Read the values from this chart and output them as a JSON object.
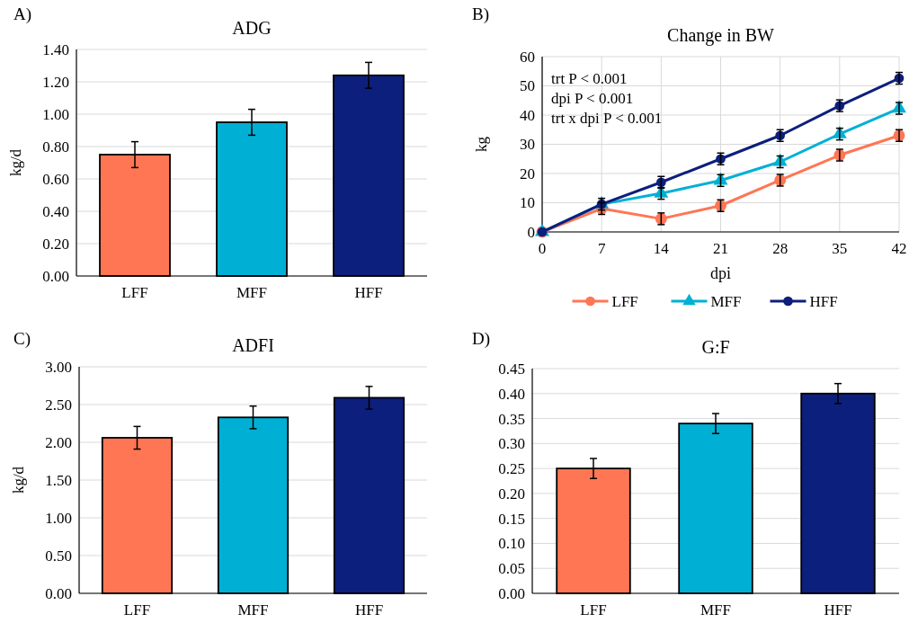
{
  "chart_data": [
    {
      "type": "bar",
      "title": "ADG",
      "ylabel": "kg/d",
      "annotations": [
        "A)"
      ],
      "categories": [
        "LFF",
        "MFF",
        "HFF"
      ],
      "values": [
        0.75,
        0.95,
        1.24
      ],
      "colors": [
        "#ff7654",
        "#00b0d4",
        "#0d1f7c"
      ],
      "errors": [
        0.08,
        0.08,
        0.08
      ],
      "ylim": [
        0,
        1.4
      ],
      "yticks": [
        {
          "value": 0,
          "label": "0.00"
        },
        {
          "value": 0.2,
          "label": "0.20"
        },
        {
          "value": 0.4,
          "label": "0.40"
        },
        {
          "value": 0.6,
          "label": "0.60"
        },
        {
          "value": 0.8,
          "label": "0.80"
        },
        {
          "value": 1,
          "label": "1.00"
        },
        {
          "value": 1.2,
          "label": "1.20"
        },
        {
          "value": 1.4,
          "label": "1.40"
        }
      ],
      "grid": "y"
    },
    {
      "type": "line",
      "title": "Change in BW",
      "xlabel": "dpi",
      "ylabel": "kg",
      "annotations": [
        "B)",
        "trt P < 0.001",
        "dpi P < 0.001",
        "trt x dpi P < 0.001"
      ],
      "x": [
        0,
        7,
        14,
        21,
        28,
        35,
        42
      ],
      "series": [
        {
          "name": "LFF",
          "color": "#ff7654",
          "marker": "circle",
          "values": [
            0,
            8,
            4.5,
            9,
            17.7,
            26.3,
            33
          ],
          "errors": [
            null,
            2,
            2,
            2,
            2,
            2,
            2
          ]
        },
        {
          "name": "MFF",
          "color": "#00b0d4",
          "marker": "triangle",
          "values": [
            0,
            9.5,
            13.2,
            17.6,
            24,
            33.5,
            42.3
          ],
          "errors": [
            null,
            null,
            2,
            2,
            2,
            2,
            2
          ]
        },
        {
          "name": "HFF",
          "color": "#0d1f7c",
          "marker": "circle",
          "values": [
            0,
            9.5,
            17,
            25,
            33,
            43.2,
            52.6
          ],
          "errors": [
            null,
            2,
            2,
            2,
            2,
            2,
            2
          ]
        }
      ],
      "xlim": [
        0,
        42
      ],
      "xticks": [
        0,
        7,
        14,
        21,
        28,
        35,
        42
      ],
      "ylim": [
        0,
        60
      ],
      "yticks": [
        0,
        10,
        20,
        30,
        40,
        50,
        60
      ],
      "grid": true,
      "legend": "bottom"
    },
    {
      "type": "bar",
      "title": "ADFI",
      "ylabel": "kg/d",
      "annotations": [
        "C)"
      ],
      "categories": [
        "LFF",
        "MFF",
        "HFF"
      ],
      "values": [
        2.06,
        2.33,
        2.59
      ],
      "colors": [
        "#ff7654",
        "#00b0d4",
        "#0d1f7c"
      ],
      "errors": [
        0.15,
        0.15,
        0.15
      ],
      "ylim": [
        0,
        3
      ],
      "yticks": [
        {
          "value": 0,
          "label": "0.00"
        },
        {
          "value": 0.5,
          "label": "0.50"
        },
        {
          "value": 1,
          "label": "1.00"
        },
        {
          "value": 1.5,
          "label": "1.50"
        },
        {
          "value": 2,
          "label": "2.00"
        },
        {
          "value": 2.5,
          "label": "2.50"
        },
        {
          "value": 3,
          "label": "3.00"
        }
      ],
      "grid": "y"
    },
    {
      "type": "bar",
      "title": "G:F",
      "annotations": [
        "D)"
      ],
      "categories": [
        "LFF",
        "MFF",
        "HFF"
      ],
      "values": [
        0.25,
        0.34,
        0.4
      ],
      "colors": [
        "#ff7654",
        "#00b0d4",
        "#0d1f7c"
      ],
      "errors": [
        0.02,
        0.02,
        0.02
      ],
      "ylim": [
        0,
        0.45
      ],
      "yticks": [
        {
          "value": 0,
          "label": "0.00"
        },
        {
          "value": 0.05,
          "label": "0.05"
        },
        {
          "value": 0.1,
          "label": "0.10"
        },
        {
          "value": 0.15,
          "label": "0.15"
        },
        {
          "value": 0.2,
          "label": "0.20"
        },
        {
          "value": 0.25,
          "label": "0.25"
        },
        {
          "value": 0.3,
          "label": "0.30"
        },
        {
          "value": 0.35,
          "label": "0.35"
        },
        {
          "value": 0.4,
          "label": "0.40"
        },
        {
          "value": 0.45,
          "label": "0.45"
        }
      ],
      "grid": "y"
    }
  ]
}
